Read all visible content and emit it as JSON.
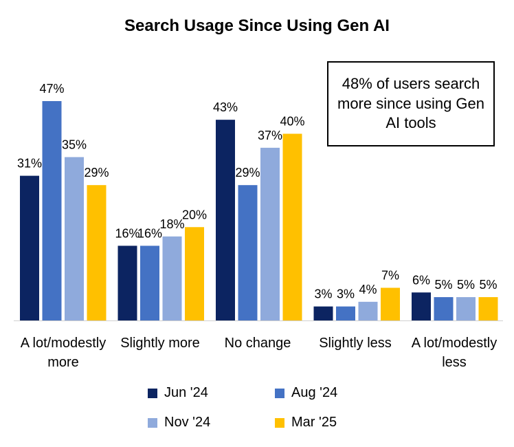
{
  "chart_data": {
    "type": "bar",
    "title": "Search Usage Since Using Gen AI",
    "categories": [
      "A lot/modestly more",
      "Slightly more",
      "No change",
      "Slightly less",
      "A lot/modestly less"
    ],
    "series": [
      {
        "name": "Jun '24",
        "color": "#0c2461",
        "values": [
          31,
          16,
          43,
          3,
          6
        ],
        "labels": [
          "31%",
          "16%",
          "43%",
          "3%",
          "6%"
        ]
      },
      {
        "name": "Aug '24",
        "color": "#4472c4",
        "values": [
          47,
          16,
          29,
          3,
          5
        ],
        "labels": [
          "47%",
          "16%",
          "29%",
          "3%",
          "5%"
        ]
      },
      {
        "name": "Nov '24",
        "color": "#8faadc",
        "values": [
          35,
          18,
          37,
          4,
          5
        ],
        "labels": [
          "35%",
          "18%",
          "37%",
          "4%",
          "5%"
        ]
      },
      {
        "name": "Mar '25",
        "color": "#ffc000",
        "values": [
          29,
          20,
          40,
          7,
          5
        ],
        "labels": [
          "29%",
          "20%",
          "40%",
          "7%",
          "5%"
        ]
      }
    ],
    "ylim": [
      0,
      47
    ],
    "grid": false,
    "legend_position": "bottom-center",
    "annotation": "48% of users search more since using Gen AI tools"
  }
}
